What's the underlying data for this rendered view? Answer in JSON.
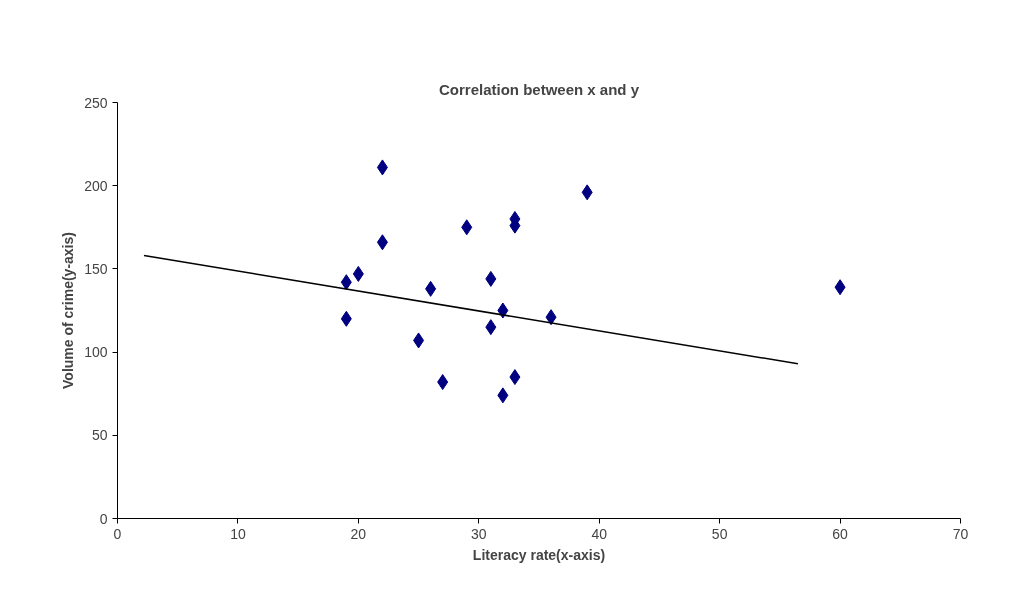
{
  "chart_data": {
    "type": "scatter",
    "title": "Correlation between x and y",
    "xlabel": "Literacy rate(x-axis)",
    "ylabel": "Volume of crime(y-axis)",
    "xlim": [
      0,
      70
    ],
    "ylim": [
      0,
      250
    ],
    "xticks": [
      0,
      10,
      20,
      30,
      40,
      50,
      60,
      70
    ],
    "yticks": [
      0,
      50,
      100,
      150,
      200,
      250
    ],
    "grid": false,
    "series": [
      {
        "marker": "diamond",
        "color": "#000080",
        "x": [
          22,
          22,
          19,
          20,
          19,
          29,
          33,
          33,
          26,
          31,
          32,
          31,
          25,
          27,
          32,
          33,
          39,
          36,
          60
        ],
        "values": [
          211,
          166,
          142,
          147,
          120,
          175,
          180,
          176,
          138,
          144,
          125,
          115,
          107,
          82,
          74,
          85,
          196,
          121,
          139
        ]
      },
      {
        "type": "line",
        "marker": "none",
        "color": "#000000",
        "line_style": "solid",
        "x": [
          2.2,
          56.5
        ],
        "values": [
          158,
          93
        ]
      }
    ]
  }
}
